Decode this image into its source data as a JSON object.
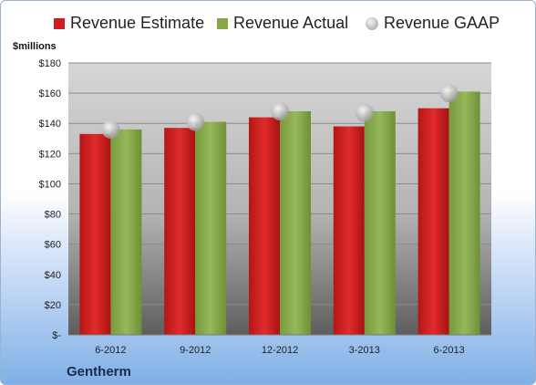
{
  "legend": {
    "estimate": "Revenue Estimate",
    "actual": "Revenue Actual",
    "gaap": "Revenue GAAP"
  },
  "unit_label": "$millions",
  "company": "Gentherm",
  "colors": {
    "estimate": "#cc1f1f",
    "actual": "#86a84a",
    "gaap": "#c0c0c0",
    "plot_bg_top": "#d2d2d2",
    "plot_bg_bottom": "#5e5e5e"
  },
  "chart_data": {
    "type": "bar",
    "categories": [
      "6-2012",
      "9-2012",
      "12-2012",
      "3-2013",
      "6-2013"
    ],
    "series": [
      {
        "name": "Revenue Estimate",
        "values": [
          133,
          137,
          144,
          138,
          150
        ]
      },
      {
        "name": "Revenue Actual",
        "values": [
          136,
          141,
          148,
          148,
          161
        ]
      },
      {
        "name": "Revenue GAAP",
        "values": [
          136,
          141,
          148,
          147,
          160
        ]
      }
    ],
    "yticks": [
      "$-",
      "$20",
      "$40",
      "$60",
      "$80",
      "$100",
      "$120",
      "$140",
      "$160",
      "$180"
    ],
    "ylabel": "$millions",
    "ylim": [
      0,
      180
    ],
    "grid": true,
    "legend_position": "top"
  }
}
